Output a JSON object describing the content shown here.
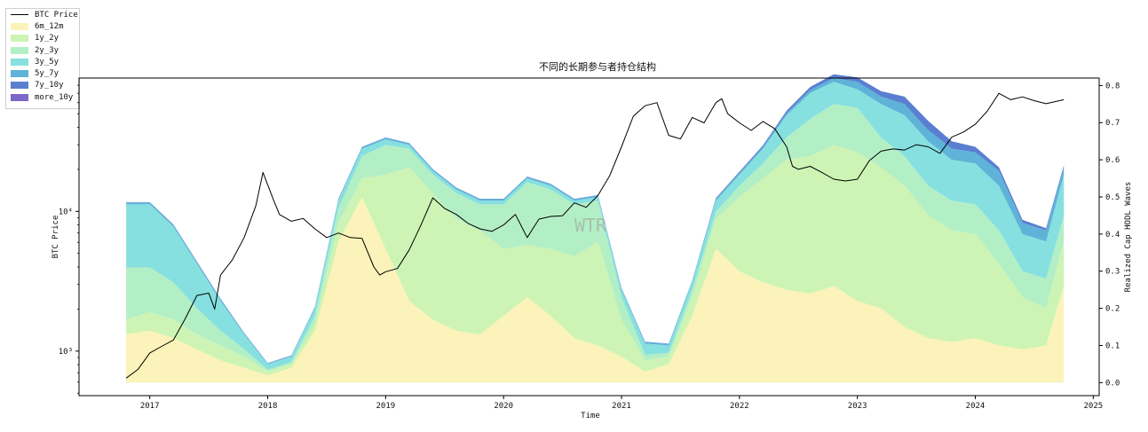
{
  "chart_data": {
    "type": "area",
    "title": "不同的长期参与者持仓结构",
    "xlabel": "Time",
    "ylabel": "BTC Price",
    "y2label": "Realized Cap HODL Waves",
    "watermark": "WTR",
    "y_scale": "log",
    "ylim": [
      480,
      90000
    ],
    "y2lim": [
      -0.035,
      0.82
    ],
    "xlim": [
      2016.4,
      2025.05
    ],
    "x_ticks": [
      "2017",
      "2018",
      "2019",
      "2020",
      "2021",
      "2022",
      "2023",
      "2024",
      "2025"
    ],
    "y_ticks": [
      "10³",
      "10⁴"
    ],
    "y2_ticks": [
      "0.0",
      "0.1",
      "0.2",
      "0.3",
      "0.4",
      "0.5",
      "0.6",
      "0.7",
      "0.8"
    ],
    "grid": false,
    "legend_position": "outside-top-left",
    "colors": {
      "6m_12m": "#fbf3b9",
      "1y_2y": "#cdf4b4",
      "2y_3y": "#b3efc5",
      "3y_5y": "#86e0df",
      "5y_7y": "#5fb3d8",
      "7y_10y": "#5a7fd0",
      "more_10y": "#7b68c8",
      "BTC Price": "#000000"
    },
    "x": [
      2016.8,
      2017.0,
      2017.2,
      2017.4,
      2017.6,
      2017.8,
      2018.0,
      2018.2,
      2018.4,
      2018.6,
      2018.8,
      2019.0,
      2019.2,
      2019.4,
      2019.6,
      2019.8,
      2020.0,
      2020.2,
      2020.4,
      2020.6,
      2020.8,
      2021.0,
      2021.2,
      2021.4,
      2021.6,
      2021.8,
      2022.0,
      2022.2,
      2022.4,
      2022.6,
      2022.8,
      2023.0,
      2023.2,
      2023.4,
      2023.6,
      2023.8,
      2024.0,
      2024.2,
      2024.4,
      2024.6,
      2024.75
    ],
    "series": [
      {
        "name": "6m_12m",
        "values": [
          0.13,
          0.14,
          0.12,
          0.09,
          0.06,
          0.04,
          0.02,
          0.04,
          0.14,
          0.38,
          0.5,
          0.36,
          0.22,
          0.17,
          0.14,
          0.13,
          0.18,
          0.23,
          0.18,
          0.12,
          0.1,
          0.07,
          0.03,
          0.05,
          0.18,
          0.36,
          0.3,
          0.27,
          0.25,
          0.24,
          0.26,
          0.22,
          0.2,
          0.15,
          0.12,
          0.11,
          0.12,
          0.1,
          0.09,
          0.1,
          0.26
        ]
      },
      {
        "name": "1y_2y",
        "values": [
          0.04,
          0.05,
          0.05,
          0.04,
          0.04,
          0.03,
          0.01,
          0.01,
          0.02,
          0.05,
          0.05,
          0.2,
          0.36,
          0.34,
          0.3,
          0.28,
          0.18,
          0.14,
          0.18,
          0.22,
          0.28,
          0.1,
          0.03,
          0.02,
          0.05,
          0.08,
          0.2,
          0.28,
          0.35,
          0.37,
          0.38,
          0.4,
          0.38,
          0.38,
          0.33,
          0.3,
          0.28,
          0.22,
          0.14,
          0.1,
          0.12
        ]
      },
      {
        "name": "2y_3y",
        "values": [
          0.14,
          0.12,
          0.1,
          0.07,
          0.04,
          0.02,
          0.005,
          0.005,
          0.02,
          0.04,
          0.06,
          0.08,
          0.05,
          0.05,
          0.07,
          0.07,
          0.12,
          0.17,
          0.16,
          0.14,
          0.11,
          0.06,
          0.015,
          0.01,
          0.02,
          0.02,
          0.03,
          0.04,
          0.06,
          0.1,
          0.11,
          0.12,
          0.08,
          0.08,
          0.08,
          0.08,
          0.08,
          0.09,
          0.07,
          0.08,
          0.07
        ]
      },
      {
        "name": "3y_5y",
        "values": [
          0.17,
          0.17,
          0.15,
          0.12,
          0.08,
          0.04,
          0.015,
          0.015,
          0.02,
          0.02,
          0.02,
          0.015,
          0.01,
          0.01,
          0.01,
          0.01,
          0.01,
          0.01,
          0.01,
          0.01,
          0.01,
          0.02,
          0.03,
          0.02,
          0.02,
          0.03,
          0.03,
          0.04,
          0.06,
          0.07,
          0.06,
          0.05,
          0.09,
          0.11,
          0.12,
          0.11,
          0.11,
          0.12,
          0.1,
          0.1,
          0.11
        ]
      },
      {
        "name": "5y_7y",
        "values": [
          0.005,
          0.005,
          0.005,
          0.005,
          0.005,
          0.003,
          0.002,
          0.002,
          0.003,
          0.004,
          0.004,
          0.004,
          0.004,
          0.004,
          0.004,
          0.004,
          0.004,
          0.004,
          0.004,
          0.004,
          0.004,
          0.004,
          0.004,
          0.004,
          0.004,
          0.005,
          0.005,
          0.005,
          0.006,
          0.008,
          0.01,
          0.02,
          0.02,
          0.03,
          0.03,
          0.03,
          0.03,
          0.04,
          0.03,
          0.03,
          0.02
        ]
      },
      {
        "name": "7y_10y",
        "values": [
          0.001,
          0.001,
          0.001,
          0.001,
          0.001,
          0.001,
          0.001,
          0.001,
          0.001,
          0.001,
          0.001,
          0.001,
          0.001,
          0.001,
          0.001,
          0.001,
          0.001,
          0.001,
          0.001,
          0.001,
          0.001,
          0.001,
          0.001,
          0.001,
          0.001,
          0.002,
          0.003,
          0.004,
          0.006,
          0.008,
          0.01,
          0.012,
          0.015,
          0.02,
          0.025,
          0.02,
          0.015,
          0.01,
          0.008,
          0.006,
          0.005
        ]
      },
      {
        "name": "more_10y",
        "values": [
          0,
          0,
          0,
          0,
          0,
          0,
          0,
          0,
          0,
          0,
          0,
          0,
          0,
          0,
          0,
          0,
          0,
          0,
          0,
          0,
          0,
          0,
          0,
          0,
          0,
          0,
          0,
          0,
          0,
          0,
          0,
          0,
          0,
          0,
          0,
          0,
          0,
          0,
          0,
          0,
          0
        ]
      }
    ],
    "price_series": {
      "name": "BTC Price",
      "x": [
        2016.8,
        2016.9,
        2017.0,
        2017.1,
        2017.2,
        2017.3,
        2017.4,
        2017.5,
        2017.55,
        2017.6,
        2017.7,
        2017.8,
        2017.9,
        2017.96,
        2018.05,
        2018.1,
        2018.2,
        2018.3,
        2018.4,
        2018.5,
        2018.6,
        2018.7,
        2018.8,
        2018.9,
        2018.95,
        2019.0,
        2019.1,
        2019.2,
        2019.3,
        2019.4,
        2019.5,
        2019.6,
        2019.7,
        2019.8,
        2019.9,
        2020.0,
        2020.1,
        2020.2,
        2020.3,
        2020.4,
        2020.5,
        2020.6,
        2020.7,
        2020.8,
        2020.9,
        2021.0,
        2021.1,
        2021.2,
        2021.3,
        2021.4,
        2021.5,
        2021.6,
        2021.7,
        2021.8,
        2021.85,
        2021.9,
        2022.0,
        2022.1,
        2022.2,
        2022.3,
        2022.4,
        2022.45,
        2022.5,
        2022.6,
        2022.7,
        2022.8,
        2022.9,
        2023.0,
        2023.1,
        2023.2,
        2023.3,
        2023.4,
        2023.5,
        2023.6,
        2023.7,
        2023.8,
        2023.9,
        2024.0,
        2024.1,
        2024.2,
        2024.3,
        2024.4,
        2024.5,
        2024.6,
        2024.75
      ],
      "values": [
        640,
        740,
        970,
        1080,
        1200,
        1700,
        2500,
        2600,
        2000,
        3500,
        4500,
        6500,
        11000,
        19000,
        12000,
        9500,
        8500,
        8900,
        7500,
        6500,
        7000,
        6500,
        6400,
        4000,
        3500,
        3700,
        3900,
        5300,
        8000,
        12500,
        10500,
        9500,
        8200,
        7500,
        7200,
        8000,
        9500,
        6500,
        8800,
        9200,
        9300,
        11500,
        10700,
        13000,
        18000,
        29000,
        48000,
        57000,
        60000,
        35000,
        33000,
        47000,
        43000,
        60000,
        64000,
        50000,
        43000,
        38000,
        44000,
        39000,
        29000,
        21000,
        20000,
        21000,
        19000,
        17000,
        16500,
        17000,
        23000,
        27000,
        28000,
        27500,
        30000,
        29000,
        26000,
        34000,
        37000,
        42000,
        52000,
        70000,
        63000,
        66000,
        62000,
        59000,
        63000
      ]
    }
  }
}
